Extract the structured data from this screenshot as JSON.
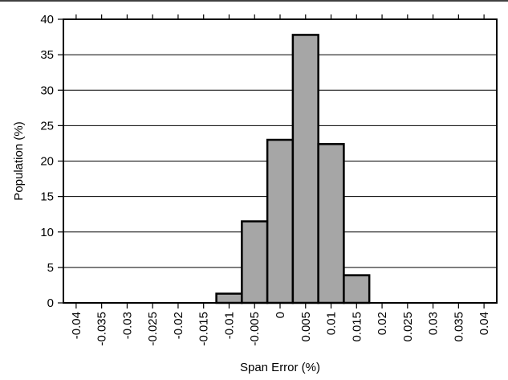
{
  "chart_data": {
    "type": "bar",
    "title": "",
    "xlabel": "Span Error (%)",
    "ylabel": "Population (%)",
    "ylim": [
      0,
      40
    ],
    "xlim": [
      -0.0425,
      0.0425
    ],
    "y_ticks": [
      "0",
      "5",
      "10",
      "15",
      "20",
      "25",
      "30",
      "35",
      "40"
    ],
    "x_ticks": [
      "-0.04",
      "-0.035",
      "-0.03",
      "-0.025",
      "-0.02",
      "-0.015",
      "-0.01",
      "-0.005",
      "0",
      "0.005",
      "0.01",
      "0.015",
      "0.02",
      "0.025",
      "0.03",
      "0.035",
      "0.04"
    ],
    "bin_width": 0.005,
    "bins": [
      {
        "center": -0.01,
        "value": 1.3
      },
      {
        "center": -0.005,
        "value": 11.5
      },
      {
        "center": 0,
        "value": 23
      },
      {
        "center": 0.005,
        "value": 37.8
      },
      {
        "center": 0.01,
        "value": 22.4
      },
      {
        "center": 0.015,
        "value": 3.9
      }
    ],
    "grid": {
      "horizontal": true,
      "vertical": false
    },
    "colors": {
      "bar_fill": "#a6a6a6",
      "bar_stroke": "#000000",
      "grid": "#000000"
    }
  }
}
